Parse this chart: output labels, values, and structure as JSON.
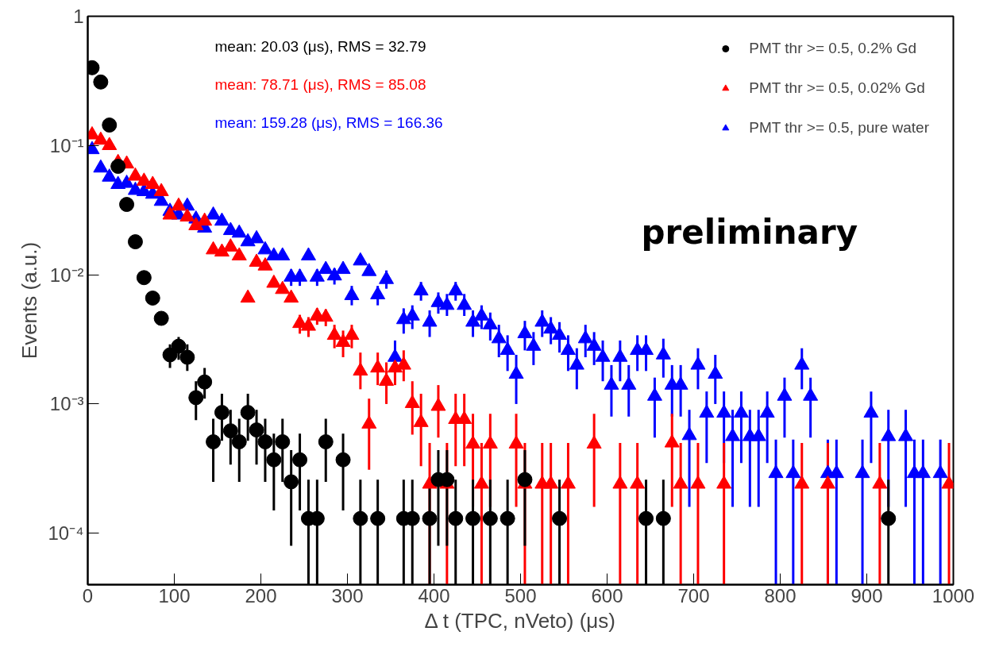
{
  "chart_data": {
    "type": "scatter",
    "xlabel": "Δ t (TPC, nVeto) (μs)",
    "ylabel": "Events (a.u.)",
    "xlim": [
      0,
      1000
    ],
    "xticks": [
      0,
      100,
      200,
      300,
      400,
      500,
      600,
      700,
      800,
      900,
      1000
    ],
    "ylim": [
      4e-05,
      1
    ],
    "log": "y",
    "yticks": [
      {
        "value": 1,
        "label": "1"
      },
      {
        "value": 0.1,
        "label": "10⁻¹"
      },
      {
        "value": 0.01,
        "label": "10⁻²"
      },
      {
        "value": 0.001,
        "label": "10⁻³"
      },
      {
        "value": 0.0001,
        "label": "10⁻⁴"
      }
    ],
    "grid": false,
    "legend": "top right",
    "annotations": [
      "mean: 20.03 (μs), RMS = 32.79",
      "mean: 78.71 (μs), RMS = 85.08",
      "mean: 159.28 (μs), RMS = 166.36",
      "preliminary"
    ],
    "series": [
      {
        "name": "PMT thr >= 0.5, 0.2% Gd",
        "color": "#000000",
        "marker": "circle",
        "x": [
          5,
          15,
          25,
          35,
          45,
          55,
          65,
          75,
          85,
          95,
          105,
          115,
          125,
          135,
          145,
          155,
          165,
          175,
          185,
          195,
          205,
          215,
          225,
          235,
          245,
          255,
          265,
          275,
          295,
          315,
          335,
          365,
          375,
          395,
          405,
          415,
          425,
          445,
          465,
          485,
          505,
          545,
          645,
          665,
          925
        ],
        "values": [
          0.4,
          0.31,
          0.144,
          0.069,
          0.035,
          0.018,
          0.0095,
          0.0066,
          0.0046,
          0.0024,
          0.0028,
          0.0023,
          0.00112,
          0.00148,
          0.00051,
          0.00086,
          0.00062,
          0.00051,
          0.00086,
          0.00063,
          0.00051,
          0.00037,
          0.00051,
          0.00025,
          0.00037,
          0.00013,
          0.00013,
          0.00051,
          0.00037,
          0.00013,
          0.00013,
          0.00013,
          0.00013,
          0.00013,
          0.00026,
          0.00026,
          0.00013,
          0.00013,
          0.00013,
          0.00013,
          0.00026,
          0.00013,
          0.00013,
          0.00013,
          0.00013
        ],
        "errors": [
          null,
          null,
          null,
          null,
          null,
          null,
          null,
          null,
          null,
          [
            0.0019,
            0.0029
          ],
          [
            0.0022,
            0.0033
          ],
          [
            0.0018,
            0.0029
          ],
          [
            0.00075,
            0.0015
          ],
          [
            0.0011,
            0.0019
          ],
          [
            0.00025,
            0.00077
          ],
          [
            0.00052,
            0.0012
          ],
          [
            0.00034,
            0.0009
          ],
          [
            0.00025,
            0.00077
          ],
          [
            0.00052,
            0.0012
          ],
          [
            0.00034,
            0.0009
          ],
          [
            0.00025,
            0.00077
          ],
          [
            0.00015,
            0.00059
          ],
          [
            0.00025,
            0.00077
          ],
          [
            8e-05,
            0.00044
          ],
          [
            0.00015,
            0.00059
          ],
          [
            4e-05,
            0.00026
          ],
          [
            4e-05,
            0.00026
          ],
          [
            0.00025,
            0.00077
          ],
          [
            0.00015,
            0.00059
          ],
          [
            4e-05,
            0.00026
          ],
          [
            4e-05,
            0.00026
          ],
          [
            4e-05,
            0.00026
          ],
          [
            4e-05,
            0.00026
          ],
          [
            4e-05,
            0.00026
          ],
          [
            8e-05,
            0.00044
          ],
          [
            8e-05,
            0.00044
          ],
          [
            4e-05,
            0.00026
          ],
          [
            4e-05,
            0.00026
          ],
          [
            4e-05,
            0.00026
          ],
          [
            4e-05,
            0.00026
          ],
          [
            8e-05,
            0.00044
          ],
          [
            4e-05,
            0.00026
          ],
          [
            4e-05,
            0.00026
          ],
          [
            4e-05,
            0.00026
          ],
          [
            4e-05,
            0.00026
          ]
        ]
      },
      {
        "name": "PMT thr >= 0.5, 0.02% Gd",
        "color": "#ff0000",
        "marker": "triangle",
        "x": [
          5,
          15,
          25,
          35,
          45,
          55,
          65,
          75,
          85,
          95,
          105,
          115,
          125,
          135,
          145,
          155,
          165,
          175,
          185,
          195,
          205,
          215,
          225,
          235,
          245,
          255,
          265,
          275,
          285,
          295,
          305,
          315,
          325,
          335,
          345,
          355,
          365,
          375,
          385,
          395,
          405,
          415,
          425,
          435,
          445,
          455,
          465,
          495,
          505,
          525,
          535,
          555,
          585,
          615,
          635,
          675,
          685,
          705,
          735,
          825,
          855,
          915,
          995
        ],
        "values": [
          0.121,
          0.11,
          0.1,
          0.074,
          0.072,
          0.058,
          0.053,
          0.05,
          0.044,
          0.029,
          0.034,
          0.028,
          0.024,
          0.026,
          0.0156,
          0.015,
          0.0164,
          0.014,
          0.0066,
          0.0125,
          0.0117,
          0.0086,
          0.0077,
          0.0066,
          0.0042,
          0.004,
          0.0048,
          0.0047,
          0.0034,
          0.003,
          0.0034,
          0.0018,
          0.0007,
          0.0019,
          0.0015,
          0.0019,
          0.002,
          0.00101,
          0.00072,
          0.00024,
          0.00096,
          0.00024,
          0.00076,
          0.00076,
          0.00049,
          0.00024,
          0.00049,
          0.00049,
          0.00024,
          0.00024,
          0.00024,
          0.00024,
          0.00049,
          0.00024,
          0.00024,
          0.0005,
          0.00024,
          0.00024,
          0.00024,
          0.00024,
          0.00024,
          0.00024,
          0.00024
        ],
        "errors": [
          null,
          null,
          null,
          null,
          null,
          null,
          null,
          null,
          null,
          null,
          null,
          null,
          null,
          null,
          null,
          null,
          null,
          null,
          null,
          null,
          null,
          null,
          null,
          null,
          [
            0.0035,
            0.0049
          ],
          [
            0.0033,
            0.0047
          ],
          [
            0.0041,
            0.0055
          ],
          [
            0.004,
            0.0054
          ],
          [
            0.0027,
            0.0041
          ],
          [
            0.0023,
            0.0037
          ],
          [
            0.0027,
            0.0041
          ],
          [
            0.0013,
            0.0025
          ],
          [
            0.00031,
            0.0011
          ],
          [
            0.0014,
            0.0025
          ],
          [
            0.001,
            0.0021
          ],
          [
            0.0014,
            0.0025
          ],
          [
            0.0015,
            0.0026
          ],
          [
            0.00058,
            0.0015
          ],
          [
            0.00033,
            0.0012
          ],
          [
            4e-05,
            0.0005
          ],
          [
            0.00055,
            0.0014
          ],
          [
            4e-05,
            0.0005
          ],
          [
            0.00033,
            0.0012
          ],
          [
            0.00033,
            0.0012
          ],
          [
            0.00016,
            0.00084
          ],
          [
            4e-05,
            0.0005
          ],
          [
            0.00016,
            0.00084
          ],
          [
            0.00016,
            0.00084
          ],
          [
            4e-05,
            0.0005
          ],
          [
            4e-05,
            0.0005
          ],
          [
            4e-05,
            0.0005
          ],
          [
            4e-05,
            0.0005
          ],
          [
            0.00016,
            0.00084
          ],
          [
            4e-05,
            0.0005
          ],
          [
            4e-05,
            0.0005
          ],
          [
            0.00016,
            0.00084
          ],
          [
            4e-05,
            0.0005
          ],
          [
            4e-05,
            0.0005
          ],
          [
            4e-05,
            0.0005
          ],
          [
            4e-05,
            0.0005
          ],
          [
            4e-05,
            0.0005
          ],
          [
            4e-05,
            0.0005
          ],
          [
            4e-05,
            0.0005
          ]
        ]
      },
      {
        "name": "PMT thr >= 0.5, pure water",
        "color": "#0000ff",
        "marker": "triangle",
        "x": [
          5,
          15,
          25,
          35,
          45,
          55,
          65,
          75,
          85,
          95,
          105,
          115,
          125,
          135,
          145,
          155,
          165,
          175,
          185,
          195,
          205,
          215,
          225,
          235,
          245,
          255,
          265,
          275,
          285,
          295,
          305,
          315,
          325,
          335,
          345,
          355,
          365,
          375,
          385,
          395,
          405,
          415,
          425,
          435,
          445,
          455,
          465,
          475,
          485,
          495,
          505,
          515,
          525,
          535,
          545,
          555,
          565,
          575,
          585,
          595,
          605,
          615,
          625,
          635,
          645,
          655,
          665,
          675,
          685,
          695,
          705,
          715,
          725,
          735,
          745,
          755,
          765,
          775,
          785,
          795,
          805,
          815,
          825,
          835,
          855,
          865,
          895,
          905,
          925,
          945,
          955,
          965,
          985
        ],
        "values": [
          0.093,
          0.067,
          0.057,
          0.05,
          0.051,
          0.045,
          0.044,
          0.042,
          0.037,
          0.031,
          0.029,
          0.034,
          0.027,
          0.023,
          0.029,
          0.026,
          0.022,
          0.021,
          0.018,
          0.019,
          0.0156,
          0.014,
          0.014,
          0.0096,
          0.0096,
          0.014,
          0.0096,
          0.011,
          0.0098,
          0.011,
          0.0069,
          0.0128,
          0.0106,
          0.007,
          0.0092,
          0.0023,
          0.0045,
          0.0048,
          0.0075,
          0.0043,
          0.0061,
          0.0058,
          0.0075,
          0.0058,
          0.0043,
          0.0048,
          0.0041,
          0.0032,
          0.0026,
          0.0017,
          0.0035,
          0.0028,
          0.0043,
          0.0038,
          0.0034,
          0.0026,
          0.002,
          0.0032,
          0.0028,
          0.0023,
          0.0014,
          0.0023,
          0.0014,
          0.0026,
          0.0026,
          0.00115,
          0.0024,
          0.0014,
          0.0014,
          0.00057,
          0.002,
          0.00085,
          0.0017,
          0.00085,
          0.00056,
          0.00085,
          0.00056,
          0.00056,
          0.00085,
          0.00029,
          0.00115,
          0.00029,
          0.002,
          0.00115,
          0.00029,
          0.00029,
          0.00029,
          0.00085,
          0.00056,
          0.00056,
          0.00029,
          0.00029,
          0.00029
        ],
        "errors": [
          null,
          null,
          null,
          null,
          null,
          null,
          null,
          null,
          null,
          null,
          null,
          null,
          null,
          null,
          null,
          null,
          null,
          null,
          null,
          null,
          null,
          null,
          null,
          [
            0.0082,
            0.011
          ],
          [
            0.0082,
            0.011
          ],
          null,
          [
            0.0082,
            0.011
          ],
          null,
          [
            0.0084,
            0.0112
          ],
          null,
          [
            0.0058,
            0.0082
          ],
          null,
          null,
          [
            0.0058,
            0.0082
          ],
          [
            0.0078,
            0.0108
          ],
          [
            0.0015,
            0.0031
          ],
          [
            0.0035,
            0.0055
          ],
          [
            0.0038,
            0.0058
          ],
          [
            0.0063,
            0.0088
          ],
          [
            0.0033,
            0.0053
          ],
          [
            0.005,
            0.0073
          ],
          [
            0.0048,
            0.0071
          ],
          [
            0.0063,
            0.0088
          ],
          [
            0.0048,
            0.0071
          ],
          [
            0.0033,
            0.0053
          ],
          [
            0.0038,
            0.0058
          ],
          [
            0.0031,
            0.0051
          ],
          [
            0.0023,
            0.0041
          ],
          [
            0.0018,
            0.0034
          ],
          [
            0.001,
            0.0024
          ],
          [
            0.0026,
            0.0044
          ],
          [
            0.002,
            0.0036
          ],
          [
            0.0033,
            0.0053
          ],
          [
            0.0029,
            0.0047
          ],
          [
            0.0025,
            0.0043
          ],
          [
            0.0018,
            0.0034
          ],
          [
            0.0013,
            0.0027
          ],
          [
            0.0023,
            0.0041
          ],
          [
            0.002,
            0.0036
          ],
          [
            0.0015,
            0.0031
          ],
          [
            0.0008,
            0.002
          ],
          [
            0.0015,
            0.0031
          ],
          [
            0.0008,
            0.002
          ],
          [
            0.0018,
            0.0034
          ],
          [
            0.0018,
            0.0034
          ],
          [
            0.00055,
            0.0016
          ],
          [
            0.0016,
            0.0032
          ],
          [
            0.0008,
            0.002
          ],
          [
            0.0008,
            0.002
          ],
          [
            0.00016,
            0.0009
          ],
          [
            0.0013,
            0.0027
          ],
          [
            0.00035,
            0.00125
          ],
          [
            0.001,
            0.0024
          ],
          [
            0.00035,
            0.00125
          ],
          [
            0.00016,
            0.0009
          ],
          [
            0.00035,
            0.00125
          ],
          [
            0.00016,
            0.0009
          ],
          [
            0.00016,
            0.0009
          ],
          [
            0.00035,
            0.00125
          ],
          [
            4e-05,
            0.00053
          ],
          [
            0.00055,
            0.0016
          ],
          [
            4e-05,
            0.00053
          ],
          [
            0.0013,
            0.0027
          ],
          [
            0.00055,
            0.0016
          ],
          [
            4e-05,
            0.00053
          ],
          [
            4e-05,
            0.00053
          ],
          [
            4e-05,
            0.00053
          ],
          [
            0.00035,
            0.00125
          ],
          [
            0.00016,
            0.0009
          ],
          [
            0.00016,
            0.0009
          ],
          [
            4e-05,
            0.00053
          ],
          [
            4e-05,
            0.00053
          ],
          [
            4e-05,
            0.00053
          ]
        ]
      }
    ]
  }
}
